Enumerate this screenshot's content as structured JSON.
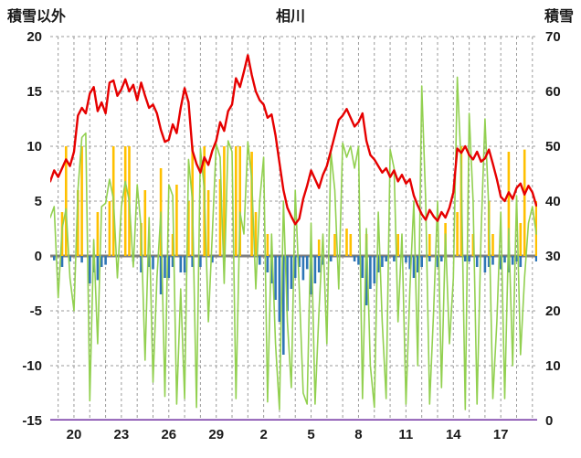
{
  "header": {
    "left_axis_title": "積雪以外",
    "chart_title": "相川",
    "right_axis_title": "積雪"
  },
  "chart_data": {
    "type": "line",
    "title": "相川",
    "grid": true,
    "left_axis": {
      "label": "積雪以外",
      "min": -15,
      "max": 20,
      "step": 5,
      "tick_labels": [
        "20",
        "15",
        "10",
        "5",
        "0",
        "-5",
        "-10",
        "-15"
      ]
    },
    "right_axis": {
      "label": "積雪",
      "min": 0,
      "max": 70,
      "step": 10,
      "tick_labels": [
        "70",
        "60",
        "50",
        "40",
        "30",
        "20",
        "10",
        "0"
      ]
    },
    "x_axis": {
      "start_day": 18.5,
      "end_day": 49.3,
      "points_per_day": 4,
      "tick_days": [
        20,
        23,
        26,
        29,
        32,
        35,
        38,
        41,
        44,
        47
      ],
      "tick_labels": [
        "20",
        "23",
        "26",
        "29",
        "2",
        "5",
        "8",
        "11",
        "14",
        "17"
      ]
    },
    "colors": {
      "red_line": "#e60000",
      "green_line": "#92d050",
      "orange_bars": "#ffc000",
      "blue_bars": "#2e75b6",
      "purple_line": "#7030a0",
      "zero_line": "#7f7f7f",
      "gridline": "#9b9b9b"
    },
    "series": [
      {
        "name": "orange-bars",
        "type": "bar",
        "color": "#ffc000",
        "values": [
          0,
          0,
          0,
          4,
          10,
          0,
          0,
          6,
          10,
          0,
          0,
          0,
          4,
          0,
          0,
          5,
          10,
          0,
          0,
          10,
          10,
          0,
          0,
          3,
          6,
          0,
          0,
          0,
          8,
          0,
          0,
          2,
          6.5,
          0,
          0,
          5,
          10,
          0,
          0,
          10,
          6,
          0,
          0,
          7,
          10,
          0,
          0,
          10,
          10,
          0,
          0,
          9.5,
          4,
          0,
          0,
          2,
          0,
          0,
          0,
          0,
          0,
          0,
          0,
          0,
          0,
          0,
          0,
          0,
          1.5,
          0,
          0,
          0,
          2,
          0,
          0,
          2.5,
          2,
          0,
          0,
          0,
          2,
          0,
          0,
          0,
          0,
          0,
          0,
          0,
          2,
          0,
          0,
          0,
          0,
          0,
          0,
          0,
          2,
          0,
          0,
          0,
          3,
          0,
          0,
          4,
          10,
          0,
          0,
          2,
          0,
          0,
          0,
          5,
          2,
          0,
          0,
          0,
          9.5,
          0,
          0,
          3,
          9.7,
          0,
          0,
          5
        ]
      },
      {
        "name": "blue-bars",
        "type": "bar",
        "color": "#2e75b6",
        "values": [
          0,
          -0.4,
          0,
          -1,
          0,
          -0.5,
          0,
          0,
          -0.6,
          0,
          -2.5,
          -1.5,
          -2.2,
          -1,
          -0.8,
          0,
          0,
          0,
          0,
          0,
          0,
          -0.5,
          0,
          -1.5,
          0,
          -1,
          -1.2,
          0,
          -3.5,
          -2,
          -2,
          -1,
          0,
          -1.5,
          -1.5,
          0,
          -1,
          0,
          -1,
          0,
          0,
          -0.6,
          0,
          0,
          -0.5,
          0,
          0,
          0,
          0,
          0,
          0,
          0,
          0,
          -0.8,
          0,
          -1.5,
          -2.5,
          -4,
          -6,
          -9,
          -5,
          -3,
          -2,
          -1,
          -2.2,
          -1.2,
          -3.5,
          -2.5,
          -1.5,
          -0.8,
          0,
          -0.5,
          0,
          0,
          0,
          0,
          0,
          -0.5,
          -0.8,
          -2,
          -4.5,
          -3,
          -2.5,
          -1.5,
          -1,
          -0.5,
          0,
          -0.5,
          0,
          0,
          -0.6,
          -1.2,
          -2,
          -1.5,
          -1,
          0,
          -0.5,
          0,
          -1,
          -0.5,
          0,
          0,
          0,
          0,
          0,
          -0.5,
          -0.5,
          0,
          -1,
          0,
          -1.5,
          -1,
          -0.8,
          0,
          -1.2,
          -0.6,
          -1.5,
          -0.8,
          -0.5,
          -1,
          0,
          0,
          0,
          -0.5
        ]
      },
      {
        "name": "green-line",
        "type": "line",
        "color": "#92d050",
        "width": 1.6,
        "values": [
          3.5,
          4.5,
          -3.8,
          2.5,
          4.3,
          -2,
          -5,
          6,
          10.8,
          11.2,
          -13.2,
          1.5,
          -8,
          4.5,
          4.8,
          7,
          5.2,
          -2,
          4.5,
          6.8,
          5,
          -1,
          6.5,
          2.5,
          -9.5,
          3.5,
          -11.5,
          -2,
          4,
          -12.8,
          6.5,
          5.5,
          -13.5,
          -3,
          -13,
          8.8,
          5,
          -13.8,
          9.8,
          6,
          -6,
          2,
          10.2,
          9,
          -2.5,
          10.5,
          9.5,
          -13,
          4,
          2,
          10.4,
          7,
          -3,
          5,
          9,
          -13.3,
          2,
          -8,
          -14,
          5,
          -6,
          -12,
          6,
          -3,
          -12.5,
          -13.5,
          3,
          -13.5,
          -5,
          2,
          -8,
          9.5,
          6,
          -3,
          10.3,
          9,
          10,
          8,
          10,
          -13,
          2.5,
          -10,
          -13.8,
          4,
          -6,
          -13,
          9.7,
          8,
          -6,
          2,
          -13.5,
          -3,
          5,
          -10,
          15.5,
          5,
          -13.5,
          -5,
          5,
          -12,
          2,
          -8,
          -2,
          16.3,
          8,
          -14,
          13,
          5,
          -13.5,
          2,
          12.5,
          4,
          -13,
          -6,
          4,
          -13,
          2.5,
          -10,
          5.5,
          -9,
          -2,
          3,
          4.5,
          2
        ]
      },
      {
        "name": "red-line",
        "type": "line",
        "color": "#e60000",
        "width": 2.4,
        "values": [
          6.8,
          7.8,
          7.2,
          8,
          8.8,
          8.2,
          9.5,
          12.8,
          13.5,
          13,
          14.8,
          15.4,
          13.2,
          14,
          13,
          15.8,
          16,
          14.6,
          15.2,
          16.1,
          15,
          15.6,
          14.2,
          15.8,
          14.6,
          13.5,
          13.8,
          13,
          11.5,
          10.4,
          10.6,
          12,
          11.2,
          13.5,
          15.3,
          14,
          9.6,
          8.4,
          7.6,
          9,
          8.3,
          9.6,
          10.5,
          12.2,
          11.4,
          13.2,
          13.8,
          16.2,
          15.4,
          16.8,
          18.3,
          16.5,
          15,
          14.2,
          13.8,
          12.6,
          12.9,
          11,
          8.5,
          6,
          4.4,
          3.6,
          2.9,
          3.4,
          5.2,
          6.4,
          7.8,
          7,
          6.2,
          7.4,
          8.2,
          9.6,
          11,
          12.4,
          12.8,
          13.4,
          12.6,
          11.8,
          12.2,
          13,
          10.5,
          9.2,
          8.8,
          8.2,
          7.6,
          8,
          7.2,
          7.8,
          6.8,
          7.4,
          6.6,
          7,
          5.5,
          4.6,
          3.8,
          3.3,
          4.2,
          3.6,
          3.2,
          4,
          3.5,
          4.4,
          5.8,
          9.8,
          9.4,
          10,
          9.2,
          8.8,
          9.5,
          8.6,
          8.9,
          9.7,
          8.4,
          7,
          5.4,
          5,
          5.8,
          5.2,
          6.2,
          6.6,
          5.6,
          6.4,
          5.8,
          4.6
        ]
      },
      {
        "name": "purple-line",
        "type": "line",
        "axis": "right",
        "color": "#7030a0",
        "width": 3,
        "constant": 0
      }
    ]
  }
}
